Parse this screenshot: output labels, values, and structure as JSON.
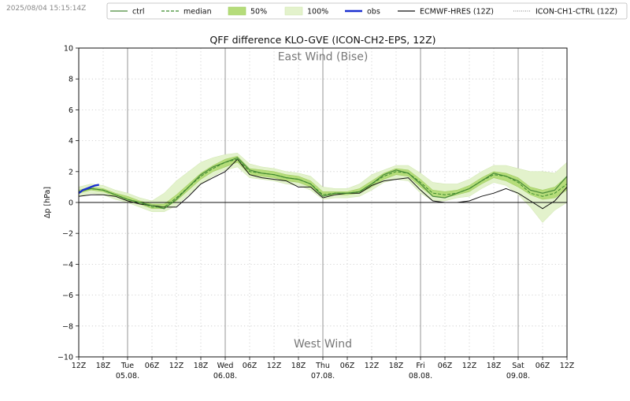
{
  "timestamp": "2025/08/04 15:15:14Z",
  "chart_data": {
    "type": "line",
    "title": "QFF difference KLO-GVE (ICON-CH2-EPS, 12Z)",
    "ylabel": "Δp [hPa]",
    "xlabel": "",
    "ylim": [
      -10,
      10
    ],
    "yticks": [
      -10,
      -8,
      -6,
      -4,
      -2,
      0,
      2,
      4,
      6,
      8,
      10
    ],
    "x_unit": "hours since 2025-08-04 12Z",
    "xlim": [
      0,
      120
    ],
    "xticks": [
      {
        "x": 0,
        "label": "12Z"
      },
      {
        "x": 6,
        "label": "18Z"
      },
      {
        "x": 12,
        "label": "Tue",
        "sub": "05.08."
      },
      {
        "x": 18,
        "label": "06Z"
      },
      {
        "x": 24,
        "label": "12Z"
      },
      {
        "x": 30,
        "label": "18Z"
      },
      {
        "x": 36,
        "label": "Wed",
        "sub": "06.08."
      },
      {
        "x": 42,
        "label": "06Z"
      },
      {
        "x": 48,
        "label": "12Z"
      },
      {
        "x": 54,
        "label": "18Z"
      },
      {
        "x": 60,
        "label": "Thu",
        "sub": "07.08."
      },
      {
        "x": 66,
        "label": "06Z"
      },
      {
        "x": 72,
        "label": "12Z"
      },
      {
        "x": 78,
        "label": "18Z"
      },
      {
        "x": 84,
        "label": "Fri",
        "sub": "08.08."
      },
      {
        "x": 90,
        "label": "06Z"
      },
      {
        "x": 96,
        "label": "12Z"
      },
      {
        "x": 102,
        "label": "18Z"
      },
      {
        "x": 108,
        "label": "Sat",
        "sub": "09.08."
      },
      {
        "x": 114,
        "label": "06Z"
      },
      {
        "x": 120,
        "label": "12Z"
      }
    ],
    "annotations": [
      {
        "text": "East Wind (Bise)",
        "x": 60,
        "y": 9.2
      },
      {
        "text": "West Wind",
        "x": 60,
        "y": -9.4
      }
    ],
    "legend": {
      "placement": "top",
      "entries": [
        {
          "label": "ctrl",
          "style": "line",
          "color": "#4a8a3a"
        },
        {
          "label": "median",
          "style": "dashed",
          "color": "#3a8a2a"
        },
        {
          "label": "50%",
          "style": "patch",
          "color": "#b5dc7a"
        },
        {
          "label": "100%",
          "style": "patch",
          "color": "#e3f2cc"
        },
        {
          "label": "obs",
          "style": "thick",
          "color": "#1a2fd0"
        },
        {
          "label": "ECMWF-HRES (12Z)",
          "style": "line",
          "color": "#111111"
        },
        {
          "label": "ICON-CH1-CTRL (12Z)",
          "style": "dotted",
          "color": "#555555"
        }
      ]
    },
    "colors": {
      "band100": "#e3f2cc",
      "band50": "#b5dc7a",
      "ctrl": "#4a8a3a",
      "median": "#3a8a2a",
      "obs": "#1a2fd0",
      "ecmwf": "#111111"
    },
    "x": [
      0,
      3,
      6,
      9,
      12,
      15,
      18,
      21,
      24,
      27,
      30,
      33,
      36,
      39,
      42,
      45,
      48,
      51,
      54,
      57,
      60,
      63,
      66,
      69,
      72,
      75,
      78,
      81,
      84,
      87,
      90,
      93,
      96,
      99,
      102,
      105,
      108,
      111,
      114,
      117,
      120
    ],
    "series": {
      "ctrl": [
        0.7,
        0.9,
        0.8,
        0.5,
        0.2,
        0.0,
        -0.2,
        -0.4,
        0.2,
        1.0,
        1.8,
        2.3,
        2.6,
        2.9,
        2.1,
        1.9,
        1.8,
        1.6,
        1.5,
        1.2,
        0.4,
        0.6,
        0.6,
        0.7,
        1.2,
        1.8,
        2.1,
        1.9,
        1.2,
        0.4,
        0.3,
        0.6,
        0.9,
        1.4,
        1.9,
        1.7,
        1.4,
        0.8,
        0.6,
        0.8,
        1.7
      ],
      "median": [
        0.7,
        0.9,
        0.8,
        0.5,
        0.2,
        0.0,
        -0.3,
        -0.3,
        0.3,
        1.0,
        1.7,
        2.2,
        2.6,
        2.8,
        2.0,
        1.9,
        1.8,
        1.6,
        1.5,
        1.2,
        0.5,
        0.6,
        0.6,
        0.7,
        1.2,
        1.7,
        2.0,
        1.9,
        1.3,
        0.6,
        0.5,
        0.6,
        0.9,
        1.4,
        1.8,
        1.7,
        1.3,
        0.6,
        0.4,
        0.6,
        1.2
      ],
      "p25": [
        0.6,
        0.8,
        0.7,
        0.4,
        0.1,
        -0.1,
        -0.4,
        -0.4,
        0.1,
        0.8,
        1.5,
        2.0,
        2.3,
        2.6,
        1.8,
        1.7,
        1.6,
        1.4,
        1.3,
        1.0,
        0.4,
        0.5,
        0.5,
        0.6,
        1.0,
        1.5,
        1.8,
        1.7,
        1.0,
        0.4,
        0.3,
        0.5,
        0.7,
        1.2,
        1.6,
        1.4,
        1.0,
        0.5,
        0.2,
        0.3,
        0.8
      ],
      "p75": [
        0.8,
        1.0,
        0.9,
        0.6,
        0.4,
        0.1,
        -0.1,
        -0.1,
        0.5,
        1.2,
        1.9,
        2.4,
        2.8,
        3.0,
        2.2,
        2.1,
        2.0,
        1.8,
        1.7,
        1.4,
        0.7,
        0.7,
        0.7,
        0.9,
        1.4,
        1.9,
        2.2,
        2.1,
        1.5,
        0.8,
        0.7,
        0.8,
        1.1,
        1.6,
        2.0,
        1.9,
        1.6,
        1.0,
        0.8,
        1.0,
        1.7
      ],
      "min": [
        0.4,
        0.6,
        0.5,
        0.2,
        0.0,
        -0.3,
        -0.6,
        -0.6,
        -0.2,
        0.5,
        1.2,
        1.7,
        2.1,
        2.3,
        1.6,
        1.5,
        1.4,
        1.2,
        1.1,
        0.8,
        0.2,
        0.3,
        0.3,
        0.4,
        0.8,
        1.3,
        1.5,
        1.4,
        0.6,
        0.1,
        0.1,
        0.3,
        0.4,
        0.9,
        1.3,
        1.1,
        0.5,
        -0.3,
        -1.3,
        -0.5,
        0.0
      ],
      "max": [
        1.0,
        1.2,
        1.1,
        0.8,
        0.6,
        0.3,
        0.1,
        0.6,
        1.4,
        2.0,
        2.6,
        2.9,
        3.1,
        3.2,
        2.5,
        2.3,
        2.2,
        2.0,
        1.9,
        1.7,
        1.0,
        0.9,
        0.9,
        1.2,
        1.8,
        2.1,
        2.4,
        2.4,
        1.9,
        1.3,
        1.2,
        1.2,
        1.5,
        2.0,
        2.4,
        2.4,
        2.2,
        2.0,
        2.0,
        1.9,
        2.6
      ],
      "ecmwf": [
        0.4,
        0.5,
        0.5,
        0.4,
        0.1,
        -0.1,
        -0.2,
        -0.3,
        -0.3,
        0.4,
        1.2,
        1.6,
        2.0,
        2.8,
        1.8,
        1.6,
        1.5,
        1.4,
        1.0,
        1.0,
        0.3,
        0.5,
        0.6,
        0.6,
        1.1,
        1.4,
        1.5,
        1.6,
        0.8,
        0.1,
        0.0,
        0.0,
        0.1,
        0.4,
        0.6,
        0.9,
        0.6,
        0.1,
        -0.4,
        0.1,
        1.0
      ],
      "obs_x": [
        0,
        1,
        2,
        3,
        4,
        5
      ],
      "obs_y": [
        0.6,
        0.8,
        0.9,
        1.0,
        1.1,
        1.15
      ]
    }
  }
}
